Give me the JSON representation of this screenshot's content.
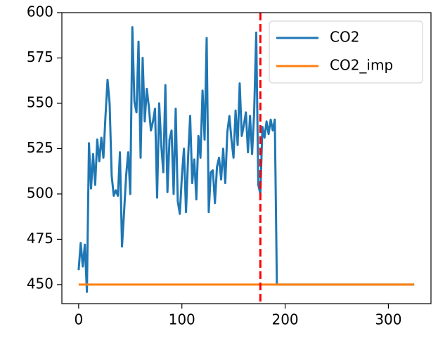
{
  "chart_data": {
    "type": "line",
    "xlim": [
      -16.25,
      341.25
    ],
    "ylim": [
      439.5,
      600
    ],
    "xticks": [
      0,
      100,
      200,
      300
    ],
    "yticks": [
      450,
      475,
      500,
      525,
      550,
      575,
      600
    ],
    "vline": {
      "x": 176,
      "color": "#ff0000"
    },
    "legend": "upper right",
    "series": [
      {
        "name": "CO2",
        "color": "#1f77b4",
        "x": [
          0,
          2,
          4,
          6,
          8,
          10,
          12,
          14,
          16,
          18,
          20,
          22,
          24,
          26,
          28,
          30,
          32,
          34,
          36,
          38,
          40,
          42,
          44,
          46,
          48,
          50,
          52,
          54,
          56,
          58,
          60,
          62,
          64,
          66,
          68,
          70,
          72,
          74,
          76,
          78,
          80,
          82,
          84,
          86,
          88,
          90,
          92,
          94,
          96,
          98,
          100,
          102,
          104,
          106,
          108,
          110,
          112,
          114,
          116,
          118,
          120,
          122,
          124,
          126,
          128,
          130,
          132,
          134,
          136,
          138,
          140,
          142,
          144,
          146,
          148,
          150,
          152,
          154,
          156,
          158,
          160,
          162,
          164,
          166,
          168,
          170,
          172,
          174,
          176,
          178,
          180,
          182,
          184,
          186,
          188,
          190,
          192,
          325
        ],
        "values": [
          458,
          473,
          460,
          472,
          446,
          528,
          503,
          522,
          505,
          530,
          518,
          531,
          520,
          543,
          563,
          550,
          510,
          499,
          502,
          499,
          523,
          471,
          490,
          510,
          523,
          500,
          592,
          551,
          545,
          584,
          520,
          575,
          540,
          558,
          548,
          535,
          540,
          547,
          498,
          550,
          527,
          512,
          560,
          501,
          530,
          535,
          500,
          547,
          496,
          489,
          510,
          525,
          490,
          520,
          543,
          506,
          519,
          497,
          532,
          520,
          557,
          530,
          586,
          490,
          512,
          513,
          495,
          515,
          520,
          508,
          525,
          506,
          534,
          543,
          530,
          520,
          546,
          527,
          561,
          532,
          538,
          545,
          523,
          543,
          522,
          545,
          589,
          505,
          500,
          537,
          531,
          540,
          533,
          541,
          535,
          541,
          450,
          450
        ]
      },
      {
        "name": "CO2_imp",
        "color": "#ff7f0e",
        "x": [
          0,
          325
        ],
        "values": [
          450,
          450
        ]
      }
    ]
  }
}
